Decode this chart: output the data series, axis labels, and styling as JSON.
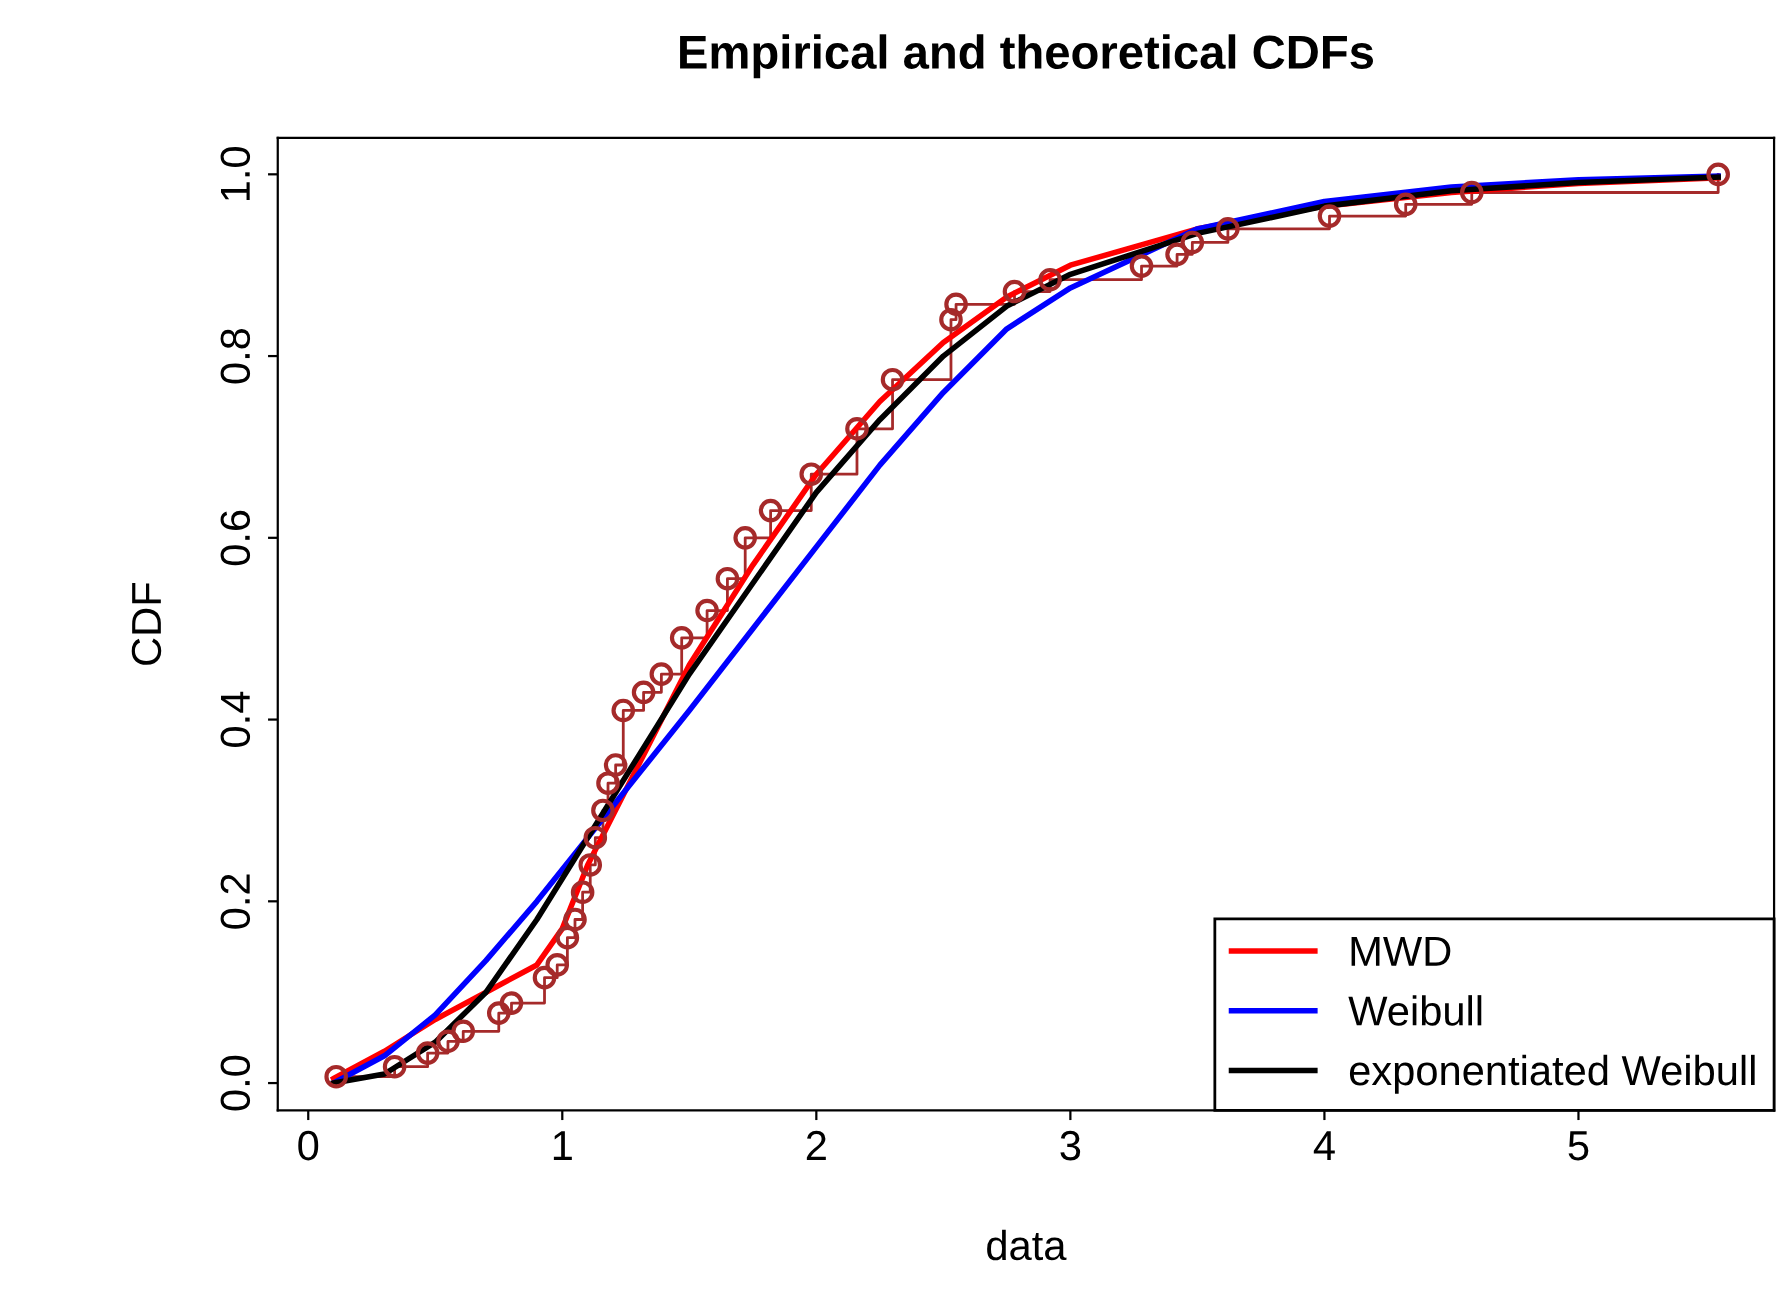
{
  "chart_data": {
    "type": "line",
    "title": "Empirical and theoretical CDFs",
    "xlabel": "data",
    "ylabel": "CDF",
    "xlim": [
      -0.12,
      5.77
    ],
    "ylim": [
      -0.03,
      1.04
    ],
    "xticks": [
      0,
      1,
      2,
      3,
      4,
      5
    ],
    "yticks": [
      {
        "value": 0,
        "label": "0.0"
      },
      0.2,
      0.4,
      0.6,
      0.8,
      {
        "value": 1,
        "label": "1.0"
      }
    ],
    "grid": false,
    "legend": "bottom right",
    "line_style": "solid",
    "series": [
      {
        "type": "step",
        "marker": "circle",
        "color": "#a52a2a",
        "x": [
          0.11,
          0.34,
          0.47,
          0.55,
          0.61,
          0.75,
          0.8,
          0.93,
          0.98,
          1.02,
          1.05,
          1.08,
          1.11,
          1.13,
          1.16,
          1.18,
          1.21,
          1.24,
          1.32,
          1.39,
          1.47,
          1.57,
          1.65,
          1.72,
          1.82,
          1.98,
          2.16,
          2.3,
          2.53,
          2.55,
          2.78,
          2.92,
          3.28,
          3.42,
          3.48,
          3.62,
          4.02,
          4.32,
          4.58,
          5.55
        ],
        "values": [
          0.007,
          0.018,
          0.033,
          0.046,
          0.057,
          0.077,
          0.088,
          0.116,
          0.13,
          0.16,
          0.18,
          0.21,
          0.24,
          0.27,
          0.3,
          0.33,
          0.35,
          0.41,
          0.43,
          0.45,
          0.49,
          0.52,
          0.555,
          0.6,
          0.63,
          0.67,
          0.72,
          0.774,
          0.84,
          0.857,
          0.871,
          0.884,
          0.899,
          0.912,
          0.925,
          0.94,
          0.954,
          0.967,
          0.98,
          1.0
        ]
      },
      {
        "marker": "none",
        "name": "MWD",
        "color": "#ff0000",
        "x": [
          0.1,
          0.3,
          0.5,
          0.7,
          0.9,
          1.0,
          1.1,
          1.3,
          1.5,
          1.75,
          2.0,
          2.25,
          2.5,
          2.75,
          3.0,
          3.5,
          4.0,
          4.5,
          5.0,
          5.55
        ],
        "values": [
          0.005,
          0.035,
          0.07,
          0.1,
          0.13,
          0.17,
          0.24,
          0.35,
          0.46,
          0.57,
          0.67,
          0.75,
          0.815,
          0.865,
          0.9,
          0.94,
          0.965,
          0.98,
          0.99,
          0.996
        ]
      },
      {
        "marker": "none",
        "name": "Weibull",
        "color": "#0000ff",
        "x": [
          0.1,
          0.3,
          0.5,
          0.7,
          0.9,
          1.1,
          1.3,
          1.5,
          1.75,
          2.0,
          2.25,
          2.5,
          2.75,
          3.0,
          3.5,
          4.0,
          4.5,
          5.0,
          5.55
        ],
        "values": [
          0.0,
          0.03,
          0.075,
          0.135,
          0.2,
          0.27,
          0.34,
          0.41,
          0.5,
          0.59,
          0.68,
          0.76,
          0.83,
          0.875,
          0.94,
          0.97,
          0.986,
          0.994,
          0.998
        ]
      },
      {
        "marker": "none",
        "name": "exponentiated Weibull",
        "color": "#000000",
        "x": [
          0.1,
          0.3,
          0.5,
          0.7,
          0.9,
          1.1,
          1.3,
          1.5,
          1.75,
          2.0,
          2.25,
          2.5,
          2.75,
          3.0,
          3.5,
          4.0,
          4.5,
          5.0,
          5.55
        ],
        "values": [
          0.0,
          0.01,
          0.045,
          0.1,
          0.18,
          0.27,
          0.36,
          0.45,
          0.55,
          0.65,
          0.73,
          0.8,
          0.855,
          0.89,
          0.935,
          0.965,
          0.982,
          0.991,
          0.997
        ]
      }
    ]
  }
}
